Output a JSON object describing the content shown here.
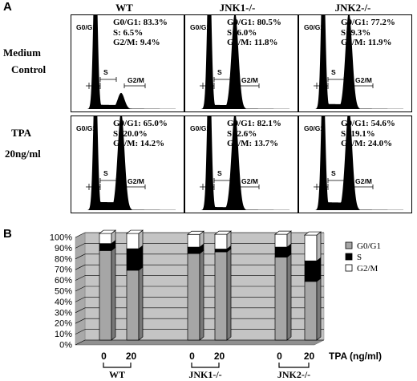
{
  "panel_a": {
    "letter": "A",
    "columns": [
      "WT",
      "JNK1-/-",
      "JNK2-/-"
    ],
    "rows": [
      {
        "label_line1": "Medium",
        "label_line2": "Control"
      },
      {
        "label_line1": "TPA",
        "label_line2": "20ng/ml"
      }
    ],
    "histogram_labels": {
      "g0g1": "G0/G1",
      "s": "S",
      "g2m": "G2/M"
    },
    "cells": [
      [
        {
          "g0g1": "G0/G1: 83.3%",
          "s": "S: 6.5%",
          "g2m": "G2/M: 9.4%"
        },
        {
          "g0g1": "G0/G1: 80.5%",
          "s": "S: 6.0%",
          "g2m": "G2/M: 11.8%"
        },
        {
          "g0g1": "G0/G1: 77.2%",
          "s": "S: 9.3%",
          "g2m": "G2/M: 11.9%"
        }
      ],
      [
        {
          "g0g1": "G0/G1: 65.0%",
          "s": "S: 20.0%",
          "g2m": "G2/M: 14.2%"
        },
        {
          "g0g1": "G0/G1: 82.1%",
          "s": "S: 2.6%",
          "g2m": "G2/M: 13.7%"
        },
        {
          "g0g1": "G0/G1: 54.6%",
          "s": "S: 19.1%",
          "g2m": "G2/M: 24.0%"
        }
      ]
    ]
  },
  "chart_data": {
    "type": "bar",
    "stacked": true,
    "style": "3d",
    "panel_letter": "B",
    "categories": [
      "0",
      "20",
      "0",
      "20",
      "0",
      "20"
    ],
    "groups": [
      {
        "label": "WT",
        "bars": [
          0,
          1
        ]
      },
      {
        "label": "JNK1-/-",
        "bars": [
          2,
          3
        ]
      },
      {
        "label": "JNK2-/-",
        "bars": [
          4,
          5
        ]
      }
    ],
    "xlabel": "TPA (ng/ml)",
    "ylim": [
      0,
      100
    ],
    "yticks": [
      "0%",
      "10%",
      "20%",
      "30%",
      "40%",
      "50%",
      "60%",
      "70%",
      "80%",
      "90%",
      "100%"
    ],
    "legend_position": "right",
    "grid": true,
    "series": [
      {
        "name": "G0/G1",
        "color": "#a6a6a6",
        "values": [
          83.3,
          65.0,
          80.5,
          82.1,
          77.2,
          54.6
        ]
      },
      {
        "name": "S",
        "color": "#000000",
        "values": [
          6.5,
          20.0,
          6.0,
          2.6,
          9.3,
          19.1
        ]
      },
      {
        "name": "G2/M",
        "color": "#ffffff",
        "values": [
          9.4,
          14.2,
          11.8,
          13.7,
          11.9,
          24.0
        ]
      }
    ]
  }
}
